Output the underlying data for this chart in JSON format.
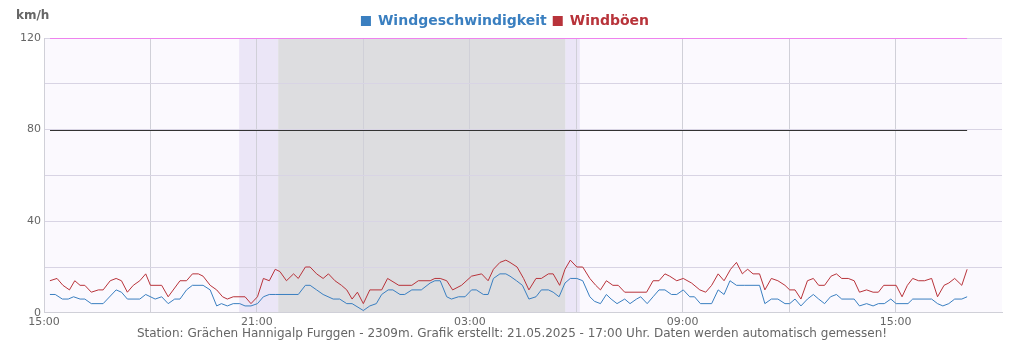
{
  "chart_data": {
    "type": "line",
    "ylabel": "km/h",
    "xlim": [
      "2025-05-20T15:00",
      "2025-05-21T18:00"
    ],
    "ylim": [
      0,
      120
    ],
    "xticks": [
      {
        "value": "2025-05-20T15:00",
        "label": "15:00"
      },
      {
        "value": "2025-05-20T18:00",
        "label": null
      },
      {
        "value": "2025-05-20T21:00",
        "label": "21:00"
      },
      {
        "value": "2025-05-21T00:00",
        "label": null
      },
      {
        "value": "2025-05-21T03:00",
        "label": "03:00"
      },
      {
        "value": "2025-05-21T06:00",
        "label": null
      },
      {
        "value": "2025-05-21T09:00",
        "label": "09:00"
      },
      {
        "value": "2025-05-21T12:00",
        "label": null
      },
      {
        "value": "2025-05-21T15:00",
        "label": "15:00"
      }
    ],
    "yticks": [
      0,
      {
        "value": 20,
        "label": null
      },
      40,
      {
        "value": 60,
        "label": null
      },
      80,
      {
        "value": 100,
        "label": null
      },
      120
    ],
    "grid": true,
    "legend": "top",
    "marker": "none",
    "line_style": "solid",
    "bands": [
      {
        "axis": "x",
        "from": "2025-05-20T20:30",
        "to": "2025-05-20T21:36",
        "color": "#ebe6f7"
      },
      {
        "axis": "x",
        "from": "2025-05-20T21:36",
        "to": "2025-05-21T05:42",
        "color": "#dddde0"
      },
      {
        "axis": "x",
        "from": "2025-05-21T05:42",
        "to": "2025-05-21T06:06",
        "color": "#ebe6f7"
      }
    ],
    "ref_lines": [
      {
        "axis": "y",
        "value": 80,
        "color": "#333333"
      },
      {
        "axis": "y",
        "value": 120,
        "color": "#ee82ee"
      }
    ],
    "annotations": [
      "Station: Grächen Hannigalp Furggen - 2309m. Grafik erstellt: 21.05.2025 - 17:00 Uhr. Daten werden automatisch gemessen!"
    ],
    "series": [
      {
        "name": "Windgeschwindigkeit",
        "color": "#3a7fc0",
        "x": [
          "2025-05-20T15:10",
          "2025-05-20T15:19",
          "2025-05-20T15:31",
          "2025-05-20T15:41",
          "2025-05-20T15:50",
          "2025-05-20T16:01",
          "2025-05-20T16:09",
          "2025-05-20T16:20",
          "2025-05-20T16:40",
          "2025-05-20T17:02",
          "2025-05-20T17:11",
          "2025-05-20T17:21",
          "2025-05-20T17:42",
          "2025-05-20T17:52",
          "2025-05-20T18:08",
          "2025-05-20T18:19",
          "2025-05-20T18:30",
          "2025-05-20T18:41",
          "2025-05-20T18:50",
          "2025-05-20T19:01",
          "2025-05-20T19:11",
          "2025-05-20T19:29",
          "2025-05-20T19:41",
          "2025-05-20T19:52",
          "2025-05-20T20:00",
          "2025-05-20T20:10",
          "2025-05-20T20:20",
          "2025-05-20T20:31",
          "2025-05-20T20:40",
          "2025-05-20T20:50",
          "2025-05-20T21:01",
          "2025-05-20T21:11",
          "2025-05-20T21:21",
          "2025-05-20T21:31",
          "2025-05-20T22:10",
          "2025-05-20T22:22",
          "2025-05-20T22:30",
          "2025-05-20T22:41",
          "2025-05-20T22:52",
          "2025-05-20T23:09",
          "2025-05-20T23:20",
          "2025-05-20T23:32",
          "2025-05-20T23:41",
          "2025-05-21T00:00",
          "2025-05-21T00:11",
          "2025-05-21T00:22",
          "2025-05-21T00:31",
          "2025-05-21T00:42",
          "2025-05-21T00:50",
          "2025-05-21T01:02",
          "2025-05-21T01:10",
          "2025-05-21T01:22",
          "2025-05-21T01:38",
          "2025-05-21T01:53",
          "2025-05-21T02:01",
          "2025-05-21T02:10",
          "2025-05-21T02:21",
          "2025-05-21T02:29",
          "2025-05-21T02:41",
          "2025-05-21T02:52",
          "2025-05-21T03:03",
          "2025-05-21T03:11",
          "2025-05-21T03:23",
          "2025-05-21T03:31",
          "2025-05-21T03:40",
          "2025-05-21T03:51",
          "2025-05-21T04:01",
          "2025-05-21T04:08",
          "2025-05-21T04:19",
          "2025-05-21T04:29",
          "2025-05-21T04:40",
          "2025-05-21T04:52",
          "2025-05-21T05:01",
          "2025-05-21T05:13",
          "2025-05-21T05:21",
          "2025-05-21T05:31",
          "2025-05-21T05:41",
          "2025-05-21T05:50",
          "2025-05-21T06:01",
          "2025-05-21T06:11",
          "2025-05-21T06:23",
          "2025-05-21T06:31",
          "2025-05-21T06:41",
          "2025-05-21T06:51",
          "2025-05-21T06:59",
          "2025-05-21T07:09",
          "2025-05-21T07:22",
          "2025-05-21T07:31",
          "2025-05-21T07:42",
          "2025-05-21T07:49",
          "2025-05-21T08:00",
          "2025-05-21T08:10",
          "2025-05-21T08:20",
          "2025-05-21T08:30",
          "2025-05-21T08:41",
          "2025-05-21T08:50",
          "2025-05-21T09:01",
          "2025-05-21T09:12",
          "2025-05-21T09:20",
          "2025-05-21T09:30",
          "2025-05-21T09:49",
          "2025-05-21T10:00",
          "2025-05-21T10:10",
          "2025-05-21T10:20",
          "2025-05-21T10:31",
          "2025-05-21T10:45",
          "2025-05-21T11:10",
          "2025-05-21T11:19",
          "2025-05-21T11:30",
          "2025-05-21T11:41",
          "2025-05-21T11:53",
          "2025-05-21T12:01",
          "2025-05-21T12:10",
          "2025-05-21T12:20",
          "2025-05-21T12:31",
          "2025-05-21T12:41",
          "2025-05-21T12:50",
          "2025-05-21T13:00",
          "2025-05-21T13:10",
          "2025-05-21T13:20",
          "2025-05-21T13:29",
          "2025-05-21T13:50",
          "2025-05-21T13:59",
          "2025-05-21T14:11",
          "2025-05-21T14:22",
          "2025-05-21T14:31",
          "2025-05-21T14:41",
          "2025-05-21T14:52",
          "2025-05-21T15:01",
          "2025-05-21T15:21",
          "2025-05-21T15:29",
          "2025-05-21T16:01",
          "2025-05-21T16:11",
          "2025-05-21T16:20",
          "2025-05-21T16:30",
          "2025-05-21T16:40",
          "2025-05-21T16:52",
          "2025-05-21T17:01"
        ],
        "values": [
          8,
          8,
          6,
          6,
          7,
          6,
          6,
          4,
          4,
          10,
          9,
          6,
          6,
          8,
          6,
          7,
          4,
          6,
          6,
          10,
          12,
          12,
          10,
          3,
          4,
          3,
          4,
          4,
          3,
          3,
          4,
          7,
          8,
          8,
          8,
          12,
          12,
          10,
          8,
          6,
          6,
          4,
          4,
          1,
          3,
          4,
          8,
          10,
          10,
          8,
          8,
          10,
          10,
          13,
          14,
          14,
          7,
          6,
          7,
          7,
          10,
          10,
          8,
          8,
          15,
          17,
          17,
          16,
          14,
          12,
          6,
          7,
          10,
          10,
          9,
          7,
          13,
          15,
          15,
          14,
          7,
          5,
          4,
          8,
          6,
          4,
          6,
          4,
          6,
          7,
          4,
          7,
          10,
          10,
          8,
          8,
          10,
          7,
          7,
          4,
          4,
          10,
          8,
          14,
          12,
          12,
          12,
          4,
          6,
          6,
          4,
          4,
          6,
          3,
          6,
          8,
          6,
          4,
          7,
          8,
          6,
          6,
          3,
          4,
          3,
          4,
          4,
          6,
          4,
          4,
          6,
          6,
          4,
          3,
          4,
          6,
          6,
          7
        ]
      },
      {
        "name": "Windböen",
        "color": "#b8333a",
        "x": [
          "2025-05-20T15:10",
          "2025-05-20T15:22",
          "2025-05-20T15:32",
          "2025-05-20T15:43",
          "2025-05-20T15:52",
          "2025-05-20T16:01",
          "2025-05-20T16:09",
          "2025-05-20T16:20",
          "2025-05-20T16:32",
          "2025-05-20T16:40",
          "2025-05-20T16:52",
          "2025-05-20T17:02",
          "2025-05-20T17:11",
          "2025-05-20T17:21",
          "2025-05-20T17:31",
          "2025-05-20T17:42",
          "2025-05-20T17:52",
          "2025-05-20T18:00",
          "2025-05-20T18:19",
          "2025-05-20T18:30",
          "2025-05-20T18:50",
          "2025-05-20T19:01",
          "2025-05-20T19:11",
          "2025-05-20T19:21",
          "2025-05-20T19:29",
          "2025-05-20T19:41",
          "2025-05-20T19:52",
          "2025-05-20T20:02",
          "2025-05-20T20:10",
          "2025-05-20T20:20",
          "2025-05-20T20:40",
          "2025-05-20T20:50",
          "2025-05-20T21:01",
          "2025-05-20T21:11",
          "2025-05-20T21:21",
          "2025-05-20T21:31",
          "2025-05-20T21:39",
          "2025-05-20T21:50",
          "2025-05-20T22:02",
          "2025-05-20T22:10",
          "2025-05-20T22:22",
          "2025-05-20T22:30",
          "2025-05-20T22:41",
          "2025-05-20T22:52",
          "2025-05-20T23:01",
          "2025-05-20T23:12",
          "2025-05-20T23:23",
          "2025-05-20T23:32",
          "2025-05-20T23:41",
          "2025-05-20T23:50",
          "2025-05-21T00:00",
          "2025-05-21T00:11",
          "2025-05-21T00:31",
          "2025-05-21T00:41",
          "2025-05-21T01:00",
          "2025-05-21T01:22",
          "2025-05-21T01:33",
          "2025-05-21T01:53",
          "2025-05-21T02:01",
          "2025-05-21T02:10",
          "2025-05-21T02:21",
          "2025-05-21T02:31",
          "2025-05-21T02:46",
          "2025-05-21T03:03",
          "2025-05-21T03:20",
          "2025-05-21T03:31",
          "2025-05-21T03:40",
          "2025-05-21T03:51",
          "2025-05-21T04:01",
          "2025-05-21T04:08",
          "2025-05-21T04:20",
          "2025-05-21T04:31",
          "2025-05-21T04:40",
          "2025-05-21T04:52",
          "2025-05-21T05:01",
          "2025-05-21T05:13",
          "2025-05-21T05:21",
          "2025-05-21T05:32",
          "2025-05-21T05:41",
          "2025-05-21T05:50",
          "2025-05-21T06:01",
          "2025-05-21T06:11",
          "2025-05-21T06:23",
          "2025-05-21T06:33",
          "2025-05-21T06:41",
          "2025-05-21T06:51",
          "2025-05-21T07:02",
          "2025-05-21T07:11",
          "2025-05-21T07:22",
          "2025-05-21T07:59",
          "2025-05-21T08:10",
          "2025-05-21T08:20",
          "2025-05-21T08:30",
          "2025-05-21T08:38",
          "2025-05-21T08:50",
          "2025-05-21T09:01",
          "2025-05-21T09:15",
          "2025-05-21T09:29",
          "2025-05-21T09:39",
          "2025-05-21T09:49",
          "2025-05-21T10:00",
          "2025-05-21T10:10",
          "2025-05-21T10:21",
          "2025-05-21T10:31",
          "2025-05-21T10:41",
          "2025-05-21T10:45",
          "2025-05-21T10:50",
          "2025-05-21T10:59",
          "2025-05-21T11:10",
          "2025-05-21T11:19",
          "2025-05-21T11:30",
          "2025-05-21T11:41",
          "2025-05-21T11:53",
          "2025-05-21T12:01",
          "2025-05-21T12:10",
          "2025-05-21T12:20",
          "2025-05-21T12:31",
          "2025-05-21T12:41",
          "2025-05-21T12:50",
          "2025-05-21T13:00",
          "2025-05-21T13:11",
          "2025-05-21T13:20",
          "2025-05-21T13:29",
          "2025-05-21T13:40",
          "2025-05-21T13:50",
          "2025-05-21T13:59",
          "2025-05-21T14:11",
          "2025-05-21T14:22",
          "2025-05-21T14:31",
          "2025-05-21T14:40",
          "2025-05-21T15:01",
          "2025-05-21T15:11",
          "2025-05-21T15:20",
          "2025-05-21T15:29",
          "2025-05-21T15:39",
          "2025-05-21T15:49",
          "2025-05-21T16:01",
          "2025-05-21T16:11",
          "2025-05-21T16:22",
          "2025-05-21T16:30",
          "2025-05-21T16:40",
          "2025-05-21T16:52",
          "2025-05-21T17:01"
        ],
        "values": [
          14,
          15,
          12,
          10,
          14,
          12,
          12,
          9,
          10,
          10,
          14,
          15,
          14,
          9,
          12,
          14,
          17,
          12,
          12,
          7,
          14,
          14,
          17,
          17,
          16,
          12,
          10,
          7,
          6,
          7,
          7,
          4,
          7,
          15,
          14,
          19,
          18,
          14,
          17,
          15,
          20,
          20,
          17,
          15,
          17,
          14,
          12,
          10,
          6,
          9,
          4,
          10,
          10,
          15,
          12,
          12,
          14,
          14,
          15,
          15,
          14,
          10,
          12,
          16,
          17,
          14,
          19,
          22,
          23,
          22,
          20,
          15,
          10,
          15,
          15,
          17,
          17,
          12,
          19,
          23,
          20,
          20,
          15,
          12,
          10,
          14,
          12,
          12,
          9,
          9,
          14,
          14,
          17,
          16,
          14,
          15,
          13,
          10,
          9,
          12,
          17,
          14,
          19,
          22,
          17,
          18,
          19,
          17,
          17,
          10,
          15,
          14,
          12,
          10,
          10,
          6,
          14,
          15,
          12,
          12,
          16,
          17,
          15,
          15,
          14,
          9,
          10,
          9,
          9,
          12,
          12,
          7,
          12,
          15,
          14,
          14,
          15,
          7,
          12,
          13,
          15,
          12,
          19
        ]
      }
    ]
  }
}
